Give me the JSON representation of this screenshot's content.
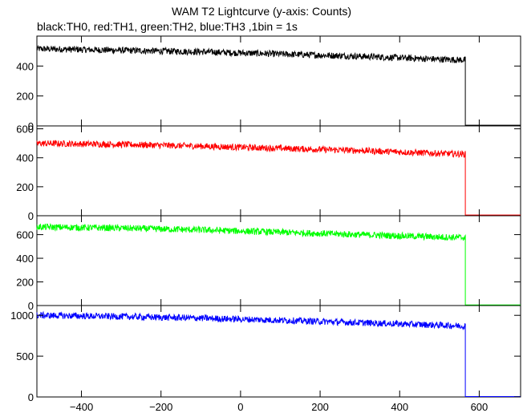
{
  "title": "WAM T2 Lightcurve (y-axis: Counts)",
  "subtitle": "black:TH0, red:TH1, green:TH2, blue:TH3 ,1bin = 1s",
  "chart_data": {
    "type": "line",
    "xlim": [
      -512,
      704
    ],
    "x_ticks": [
      -400,
      -200,
      0,
      200,
      400,
      600
    ],
    "x_tick_labels": [
      "−400",
      "−200",
      "0",
      "200",
      "400",
      "600"
    ],
    "data_end_x": 565,
    "panels": [
      {
        "name": "TH0",
        "color": "#000000",
        "ylim": [
          0,
          600
        ],
        "yticks": [
          0,
          200,
          400
        ],
        "ytick_labels": [
          "0",
          "200",
          "400"
        ],
        "trend_x": [
          -512,
          -300,
          -100,
          100,
          300,
          500,
          565
        ],
        "trend_y": [
          515,
          505,
          495,
          480,
          465,
          445,
          440
        ],
        "noise_amp": 22,
        "after_value": 5
      },
      {
        "name": "TH1",
        "color": "#ff0000",
        "ylim": [
          0,
          620
        ],
        "yticks": [
          0,
          200,
          400,
          600
        ],
        "ytick_labels": [
          "0",
          "200",
          "400",
          "600"
        ],
        "trend_x": [
          -512,
          -300,
          -100,
          100,
          300,
          500,
          565
        ],
        "trend_y": [
          500,
          492,
          480,
          465,
          450,
          430,
          425
        ],
        "noise_amp": 22,
        "after_value": 5
      },
      {
        "name": "TH2",
        "color": "#00ff00",
        "ylim": [
          0,
          760
        ],
        "yticks": [
          0,
          200,
          400,
          600
        ],
        "ytick_labels": [
          "0",
          "200",
          "400",
          "600"
        ],
        "trend_x": [
          -512,
          -300,
          -100,
          100,
          300,
          500,
          565
        ],
        "trend_y": [
          665,
          655,
          640,
          620,
          600,
          580,
          575
        ],
        "noise_amp": 28,
        "after_value": 5
      },
      {
        "name": "TH3",
        "color": "#0000ff",
        "ylim": [
          0,
          1120
        ],
        "yticks": [
          0,
          500,
          1000
        ],
        "ytick_labels": [
          "0",
          "500",
          "1000"
        ],
        "trend_x": [
          -512,
          -300,
          -100,
          100,
          300,
          500,
          565
        ],
        "trend_y": [
          1000,
          985,
          965,
          940,
          910,
          880,
          870
        ],
        "noise_amp": 40,
        "after_value": 5
      }
    ]
  }
}
